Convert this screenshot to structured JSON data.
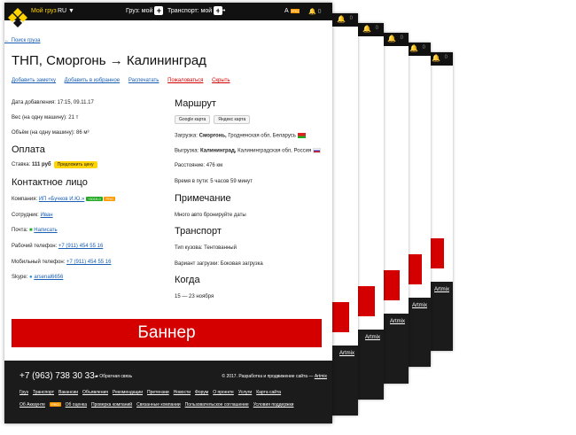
{
  "header": {
    "my_cargo": "Мой груз",
    "lang": "RU ▼",
    "cargo_menu": "Груз: мой",
    "transport_menu": "Транспорт: мой",
    "more": "•••",
    "user_initial": "А",
    "user_badge": "PRO",
    "notifications": "0"
  },
  "back_link": "← Поиск груза",
  "title": "ТНП, Сморгонь → Калининград",
  "actions": [
    {
      "label": "Добавить заметку",
      "type": "link"
    },
    {
      "label": "Добавить в избранное",
      "type": "link"
    },
    {
      "label": "Распечатать",
      "type": "link"
    },
    {
      "label": "Пожаловаться",
      "type": "danger"
    },
    {
      "label": "Скрыть",
      "type": "danger"
    }
  ],
  "details": {
    "added": "Дата добавления: 17:15, 09.11.17",
    "weight": "Вес (на одну машину): 21 т",
    "volume": "Объём (на одну машину): 86 м³"
  },
  "payment": {
    "heading": "Оплата",
    "rate_label": "Ставка:",
    "rate_value": "111 руб",
    "offer_button": "Предложить цену"
  },
  "contact": {
    "heading": "Контактное лицо",
    "company_label": "Компания:",
    "company": "ИП «Бучков И.Ю.»",
    "company_rating": "+3019-0",
    "company_badge": "PRO",
    "employee_label": "Сотрудник:",
    "employee": "Иван",
    "mail_label": "Почта:",
    "mail_link": "Написать",
    "work_phone_label": "Рабочий телефон:",
    "work_phone": "+7 (911) 454 55 16",
    "mobile_label": "Мобильный телефон:",
    "mobile": "+7 (911) 454 55 16",
    "skype_label": "Skype:",
    "skype": "arsenal6656"
  },
  "route": {
    "heading": "Маршрут",
    "google_map": "Google карта",
    "yandex_map": "Яндекс карта",
    "load_label": "Загрузка:",
    "load_city": "Сморгонь,",
    "load_region": "Гродненская обл, Беларусь",
    "unload_label": "Выгрузка:",
    "unload_city": "Калининград,",
    "unload_region": "Калининградская обл, Россия",
    "distance": "Расстояние: 476 км",
    "time": "Время в пути: 5 часов 59 минут"
  },
  "note": {
    "heading": "Примечание",
    "text": "Много авто бронируйте даты"
  },
  "transport": {
    "heading": "Транспорт",
    "body": "Тип кузова: Тентованный",
    "loading": "Вариант загрузки: Боковая загрузка"
  },
  "when": {
    "heading": "Когда",
    "dates": "15 — 23 ноября"
  },
  "banner": "Баннер",
  "footer": {
    "phone": "+7 (963) 738 30 33",
    "feedback": "Обратная связь",
    "copyright": "© 2017. Разработка и продвижение сайта —",
    "dev": "Artmix",
    "links_row1": [
      "Груз",
      "Транспорт",
      "Вакансии",
      "Объявления",
      "Рекомендации",
      "Претензии",
      "Новости",
      "Форум",
      "О проекте",
      "Услуги",
      "Карта сайта"
    ],
    "links_row2": [
      "Об Аккаунте",
      "Об оценка",
      "Проверка компаний",
      "Связанные компании",
      "Пользовательское соглашение",
      "Условия поддержки"
    ],
    "pro_badge": "PRO"
  },
  "colors": {
    "accent": "#ffd400",
    "danger": "#d40000",
    "link": "#1a5fb4",
    "dark": "#111111"
  }
}
